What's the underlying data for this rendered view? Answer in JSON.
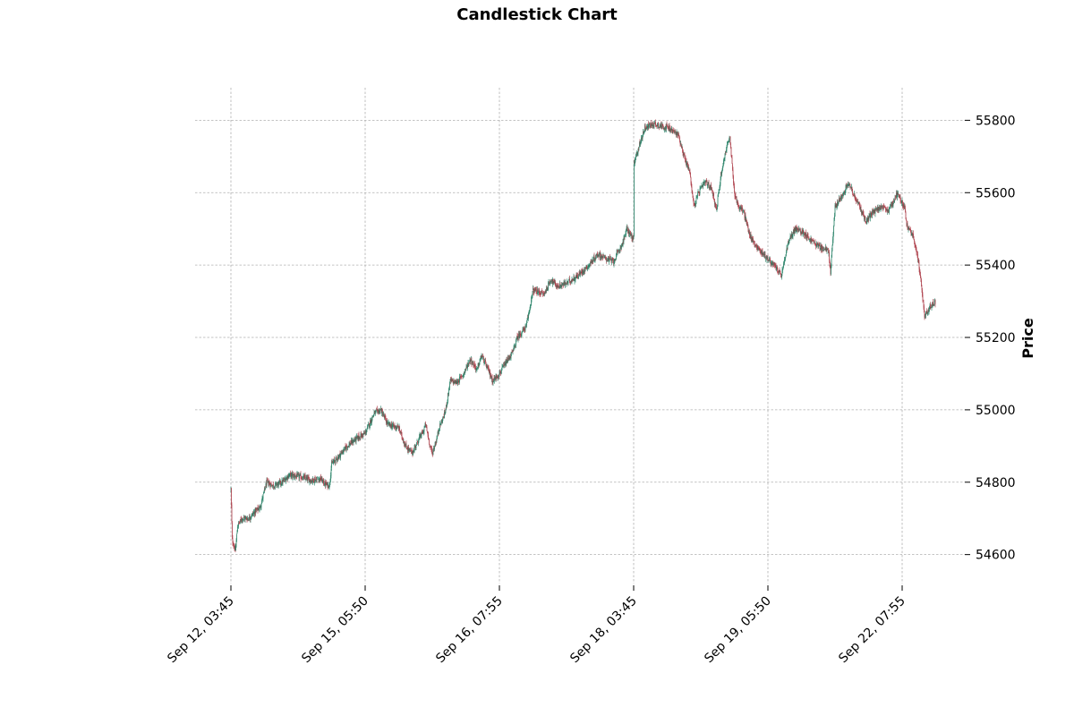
{
  "chart_data": {
    "type": "candlestick",
    "title": "Candlestick Chart",
    "ylabel": "Price",
    "xlabel": "",
    "grid": true,
    "ylim": [
      54520,
      55890
    ],
    "y_ticks": [
      54600,
      54800,
      55000,
      55200,
      55400,
      55600,
      55800
    ],
    "x_tick_labels": [
      "Sep 12, 03:45",
      "Sep 15, 05:50",
      "Sep 16, 07:55",
      "Sep 18, 03:45",
      "Sep 19, 05:50",
      "Sep 22, 07:55"
    ],
    "x_tick_index": [
      0,
      300,
      600,
      900,
      1200,
      1500
    ],
    "x_range": [
      -80,
      1640
    ],
    "candle_count": 1575,
    "up_color": "#1a7a5e",
    "down_color": "#a8323e",
    "close_path": [
      [
        0,
        54780
      ],
      [
        3,
        54640
      ],
      [
        10,
        54610
      ],
      [
        15,
        54680
      ],
      [
        25,
        54700
      ],
      [
        40,
        54700
      ],
      [
        55,
        54720
      ],
      [
        65,
        54730
      ],
      [
        80,
        54800
      ],
      [
        95,
        54790
      ],
      [
        115,
        54800
      ],
      [
        130,
        54820
      ],
      [
        155,
        54815
      ],
      [
        180,
        54805
      ],
      [
        200,
        54810
      ],
      [
        210,
        54795
      ],
      [
        220,
        54790
      ],
      [
        225,
        54850
      ],
      [
        240,
        54870
      ],
      [
        260,
        54900
      ],
      [
        280,
        54920
      ],
      [
        300,
        54935
      ],
      [
        320,
        54990
      ],
      [
        335,
        55000
      ],
      [
        350,
        54960
      ],
      [
        375,
        54950
      ],
      [
        390,
        54900
      ],
      [
        405,
        54880
      ],
      [
        420,
        54920
      ],
      [
        430,
        54940
      ],
      [
        435,
        54960
      ],
      [
        445,
        54900
      ],
      [
        450,
        54880
      ],
      [
        460,
        54920
      ],
      [
        465,
        54950
      ],
      [
        475,
        54980
      ],
      [
        480,
        55000
      ],
      [
        490,
        55080
      ],
      [
        505,
        55075
      ],
      [
        520,
        55100
      ],
      [
        535,
        55140
      ],
      [
        550,
        55110
      ],
      [
        560,
        55150
      ],
      [
        575,
        55110
      ],
      [
        585,
        55080
      ],
      [
        600,
        55100
      ],
      [
        615,
        55130
      ],
      [
        630,
        55160
      ],
      [
        640,
        55200
      ],
      [
        660,
        55230
      ],
      [
        675,
        55330
      ],
      [
        700,
        55320
      ],
      [
        715,
        55360
      ],
      [
        730,
        55340
      ],
      [
        750,
        55350
      ],
      [
        775,
        55370
      ],
      [
        800,
        55400
      ],
      [
        820,
        55430
      ],
      [
        835,
        55420
      ],
      [
        855,
        55410
      ],
      [
        875,
        55460
      ],
      [
        885,
        55500
      ],
      [
        900,
        55470
      ],
      [
        901,
        55680
      ],
      [
        910,
        55720
      ],
      [
        925,
        55780
      ],
      [
        945,
        55790
      ],
      [
        975,
        55780
      ],
      [
        1000,
        55760
      ],
      [
        1015,
        55690
      ],
      [
        1025,
        55660
      ],
      [
        1035,
        55560
      ],
      [
        1045,
        55600
      ],
      [
        1060,
        55630
      ],
      [
        1075,
        55610
      ],
      [
        1085,
        55550
      ],
      [
        1095,
        55650
      ],
      [
        1110,
        55740
      ],
      [
        1115,
        55750
      ],
      [
        1125,
        55600
      ],
      [
        1135,
        55560
      ],
      [
        1145,
        55550
      ],
      [
        1160,
        55480
      ],
      [
        1175,
        55450
      ],
      [
        1190,
        55430
      ],
      [
        1205,
        55410
      ],
      [
        1220,
        55390
      ],
      [
        1230,
        55370
      ],
      [
        1245,
        55460
      ],
      [
        1260,
        55500
      ],
      [
        1280,
        55490
      ],
      [
        1295,
        55470
      ],
      [
        1315,
        55450
      ],
      [
        1335,
        55440
      ],
      [
        1340,
        55380
      ],
      [
        1350,
        55560
      ],
      [
        1365,
        55590
      ],
      [
        1380,
        55630
      ],
      [
        1390,
        55600
      ],
      [
        1405,
        55560
      ],
      [
        1420,
        55520
      ],
      [
        1430,
        55540
      ],
      [
        1450,
        55560
      ],
      [
        1470,
        55550
      ],
      [
        1490,
        55600
      ],
      [
        1505,
        55560
      ],
      [
        1510,
        55510
      ],
      [
        1525,
        55480
      ],
      [
        1535,
        55420
      ],
      [
        1545,
        55320
      ],
      [
        1550,
        55260
      ],
      [
        1560,
        55280
      ],
      [
        1575,
        55300
      ]
    ]
  }
}
